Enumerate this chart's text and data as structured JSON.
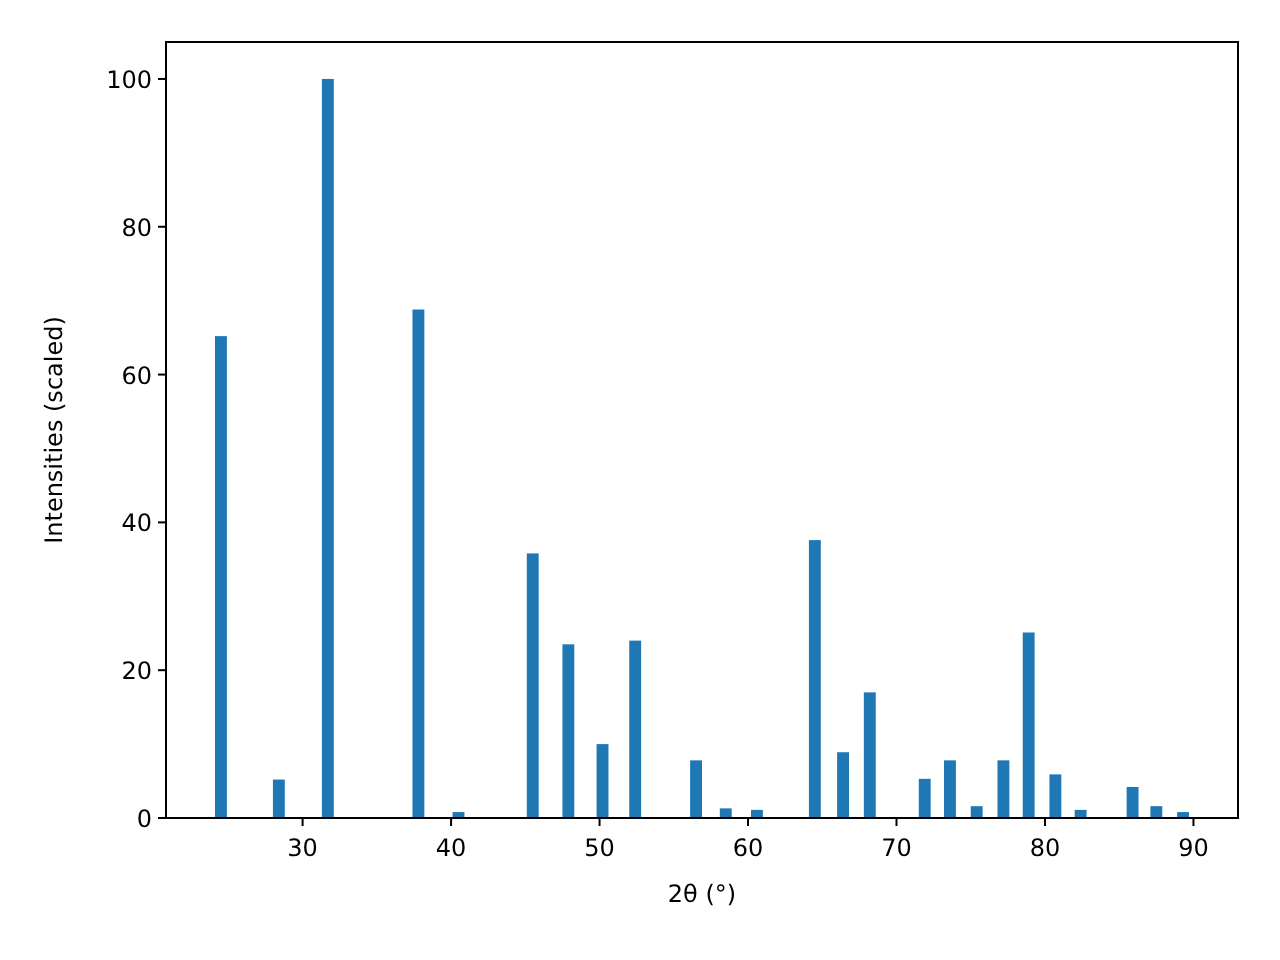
{
  "chart_data": {
    "type": "bar",
    "xlabel": "2θ (°)",
    "ylabel": "Intensities (scaled)",
    "color": "#1f77b4",
    "x": [
      24.5,
      28.4,
      31.7,
      37.8,
      40.5,
      45.5,
      47.9,
      50.2,
      52.4,
      56.5,
      58.5,
      60.6,
      64.5,
      66.4,
      68.2,
      71.9,
      73.6,
      75.4,
      77.2,
      78.9,
      80.7,
      82.4,
      85.9,
      87.5,
      89.3
    ],
    "values": [
      65.2,
      5.2,
      100,
      68.8,
      0.8,
      35.8,
      23.5,
      10,
      24,
      7.8,
      1.3,
      1.1,
      37.6,
      8.9,
      17,
      5.3,
      7.8,
      1.6,
      7.8,
      25.1,
      5.9,
      1.1,
      4.2,
      1.6,
      0.8
    ],
    "xlim": [
      20.8,
      93.0
    ],
    "ylim": [
      0,
      105
    ],
    "xticks": [
      30,
      40,
      50,
      60,
      70,
      80,
      90
    ],
    "yticks": [
      0,
      20,
      40,
      60,
      80,
      100
    ]
  }
}
